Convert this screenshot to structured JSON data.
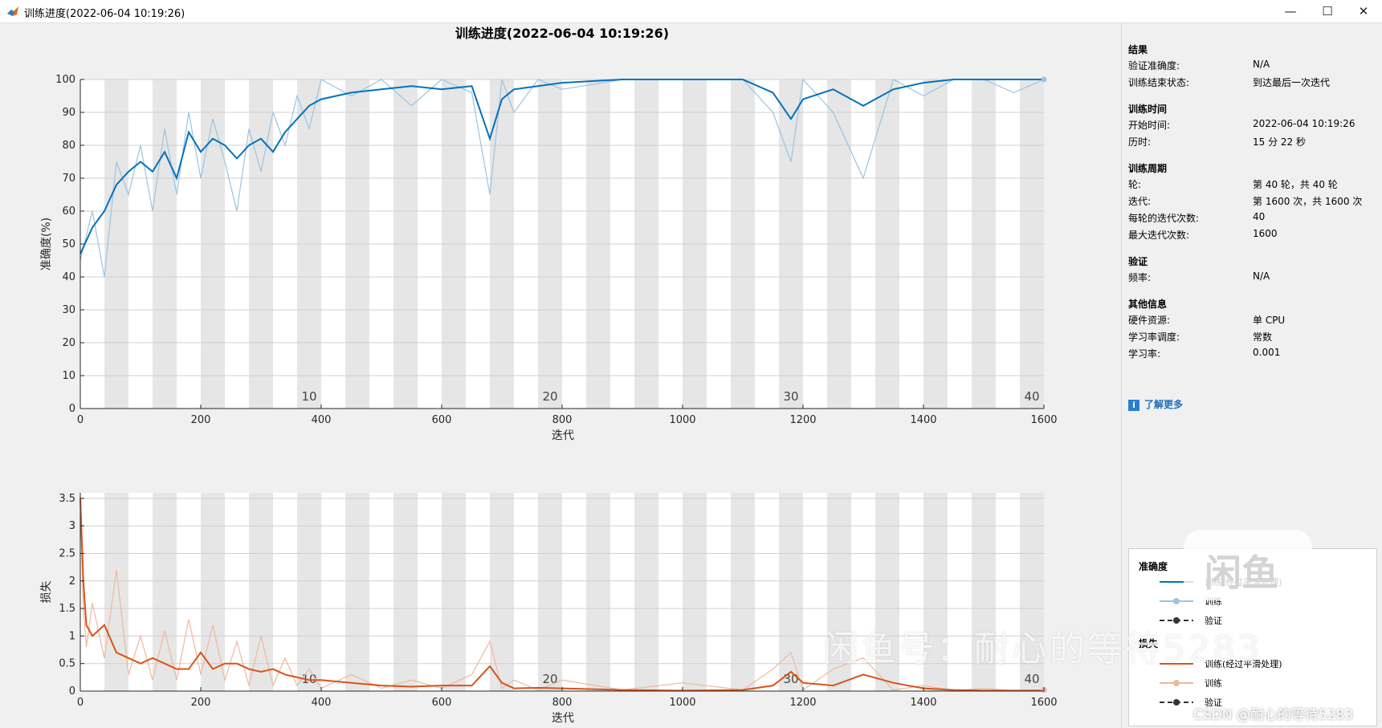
{
  "window": {
    "title": "训练进度(2022-06-04 10:19:26)",
    "controls": {
      "minimize": "—",
      "maximize": "☐",
      "close": "✕"
    }
  },
  "figure_title": "训练进度(2022-06-04 10:19:26)",
  "chart_data": [
    {
      "type": "line",
      "ylabel": "准确度(%)",
      "xlabel": "迭代",
      "xlim": [
        0,
        1600
      ],
      "ylim": [
        0,
        100
      ],
      "xticks": [
        0,
        200,
        400,
        600,
        800,
        1000,
        1200,
        1400,
        1600
      ],
      "yticks": [
        0,
        10,
        20,
        30,
        40,
        50,
        60,
        70,
        80,
        90,
        100
      ],
      "epoch_labels": [
        "10",
        "20",
        "30",
        "40"
      ],
      "series": [
        {
          "name": "训练(经过平滑处理)",
          "color": "#0072bd",
          "x": [
            0,
            20,
            40,
            60,
            80,
            100,
            120,
            140,
            160,
            180,
            200,
            220,
            240,
            260,
            280,
            300,
            320,
            340,
            360,
            380,
            400,
            450,
            500,
            550,
            600,
            650,
            680,
            700,
            720,
            760,
            800,
            900,
            1000,
            1100,
            1150,
            1180,
            1200,
            1250,
            1300,
            1350,
            1400,
            1450,
            1500,
            1550,
            1600
          ],
          "y": [
            47,
            55,
            60,
            68,
            72,
            75,
            72,
            78,
            70,
            84,
            78,
            82,
            80,
            76,
            80,
            82,
            78,
            84,
            88,
            92,
            94,
            96,
            97,
            98,
            97,
            98,
            82,
            94,
            97,
            98,
            99,
            100,
            100,
            100,
            96,
            88,
            94,
            97,
            92,
            97,
            99,
            100,
            100,
            100,
            100
          ]
        },
        {
          "name": "训练",
          "color": "#9cc3e0",
          "x": [
            0,
            20,
            40,
            60,
            80,
            100,
            120,
            140,
            160,
            180,
            200,
            220,
            240,
            260,
            280,
            300,
            320,
            340,
            360,
            380,
            400,
            450,
            500,
            550,
            600,
            650,
            680,
            700,
            720,
            760,
            800,
            900,
            1000,
            1100,
            1150,
            1180,
            1200,
            1250,
            1300,
            1350,
            1400,
            1450,
            1500,
            1550,
            1600
          ],
          "y": [
            45,
            60,
            40,
            75,
            65,
            80,
            60,
            85,
            65,
            90,
            70,
            88,
            75,
            60,
            85,
            72,
            90,
            80,
            95,
            85,
            100,
            95,
            100,
            92,
            100,
            96,
            65,
            100,
            90,
            100,
            97,
            100,
            100,
            100,
            90,
            75,
            100,
            90,
            70,
            100,
            95,
            100,
            100,
            96,
            100
          ]
        }
      ]
    },
    {
      "type": "line",
      "ylabel": "损失",
      "xlabel": "迭代",
      "xlim": [
        0,
        1600
      ],
      "ylim": [
        0,
        3.6
      ],
      "xticks": [
        0,
        200,
        400,
        600,
        800,
        1000,
        1200,
        1400,
        1600
      ],
      "yticks": [
        0,
        0.5,
        1,
        1.5,
        2,
        2.5,
        3,
        3.5
      ],
      "epoch_labels": [
        "10",
        "20",
        "30",
        "40"
      ],
      "series": [
        {
          "name": "训练(经过平滑处理)",
          "color": "#d95319",
          "x": [
            0,
            5,
            10,
            20,
            40,
            60,
            80,
            100,
            120,
            140,
            160,
            180,
            200,
            220,
            240,
            260,
            280,
            300,
            320,
            340,
            360,
            380,
            400,
            450,
            500,
            550,
            600,
            650,
            680,
            700,
            720,
            760,
            800,
            900,
            1000,
            1100,
            1150,
            1180,
            1200,
            1250,
            1300,
            1350,
            1400,
            1450,
            1500,
            1550,
            1600
          ],
          "y": [
            3.5,
            2.0,
            1.2,
            1.0,
            1.2,
            0.7,
            0.6,
            0.5,
            0.6,
            0.5,
            0.4,
            0.4,
            0.7,
            0.4,
            0.5,
            0.5,
            0.4,
            0.35,
            0.4,
            0.3,
            0.25,
            0.2,
            0.2,
            0.15,
            0.1,
            0.08,
            0.1,
            0.1,
            0.45,
            0.15,
            0.05,
            0.06,
            0.05,
            0.02,
            0.01,
            0.02,
            0.1,
            0.35,
            0.15,
            0.1,
            0.3,
            0.15,
            0.05,
            0.02,
            0.01,
            0.01,
            0.01
          ]
        },
        {
          "name": "训练",
          "color": "#efb89c",
          "x": [
            0,
            5,
            10,
            20,
            40,
            60,
            80,
            100,
            120,
            140,
            160,
            180,
            200,
            220,
            240,
            260,
            280,
            300,
            320,
            340,
            360,
            380,
            400,
            450,
            500,
            550,
            600,
            650,
            680,
            700,
            720,
            760,
            800,
            900,
            1000,
            1100,
            1150,
            1180,
            1200,
            1250,
            1300,
            1350,
            1400,
            1450,
            1500,
            1550,
            1600
          ],
          "y": [
            3.5,
            1.5,
            0.8,
            1.6,
            0.6,
            2.2,
            0.3,
            1.0,
            0.2,
            1.1,
            0.2,
            1.3,
            0.3,
            1.2,
            0.2,
            0.9,
            0.1,
            1.0,
            0.1,
            0.6,
            0.1,
            0.4,
            0.05,
            0.3,
            0.05,
            0.2,
            0.05,
            0.3,
            0.9,
            0.05,
            0.2,
            0.02,
            0.2,
            0.02,
            0.15,
            0.02,
            0.4,
            0.7,
            0.02,
            0.4,
            0.6,
            0.02,
            0.1,
            0.01,
            0.05,
            0.01,
            0.02
          ]
        }
      ]
    }
  ],
  "side": {
    "sections": [
      {
        "title": "结果",
        "rows": [
          {
            "label": "验证准确度:",
            "value": "N/A"
          },
          {
            "label": "训练结束状态:",
            "value": "到达最后一次迭代"
          }
        ]
      },
      {
        "title": "训练时间",
        "rows": [
          {
            "label": "开始时间:",
            "value": "2022-06-04 10:19:26"
          },
          {
            "label": "历时:",
            "value": "15 分 22 秒"
          }
        ]
      },
      {
        "title": "训练周期",
        "rows": [
          {
            "label": "轮:",
            "value": "第 40 轮，共 40 轮"
          },
          {
            "label": "迭代:",
            "value": "第 1600 次，共 1600 次"
          },
          {
            "label": "每轮的迭代次数:",
            "value": "40"
          },
          {
            "label": "最大迭代次数:",
            "value": "1600"
          }
        ]
      },
      {
        "title": "验证",
        "rows": [
          {
            "label": "频率:",
            "value": "N/A"
          }
        ]
      },
      {
        "title": "其他信息",
        "rows": [
          {
            "label": "硬件资源:",
            "value": "单 CPU"
          },
          {
            "label": "学习率调度:",
            "value": "常数"
          },
          {
            "label": "学习率:",
            "value": "0.001"
          }
        ]
      }
    ],
    "learn_more": "了解更多"
  },
  "legend": {
    "acc_title": "准确度",
    "loss_title": "损失",
    "items": [
      "训练(经过平滑处理)",
      "训练",
      "验证"
    ]
  },
  "watermark": {
    "text": "闲鱼号：耐心的等待5283",
    "badge": "闲鱼",
    "csdn": "CSDN @耐心的等待5283"
  }
}
